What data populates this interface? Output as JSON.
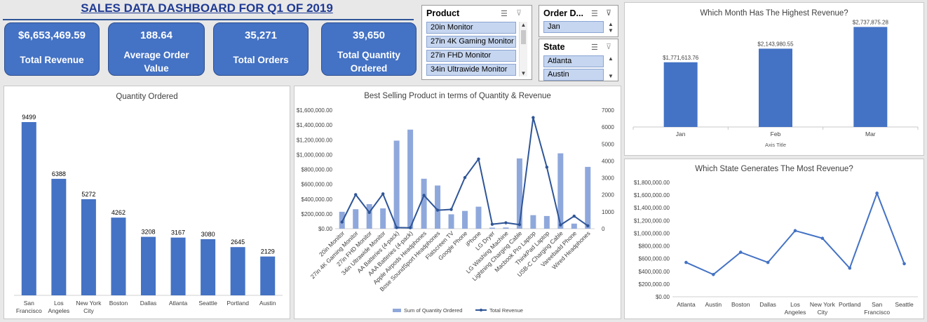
{
  "dashboard": {
    "title": "SALES DATA DASHBOARD FOR Q1 OF 2019"
  },
  "kpis": [
    {
      "value": "$6,653,469.59",
      "label": "Total Revenue"
    },
    {
      "value": "188.64",
      "label": "Average Order Value"
    },
    {
      "value": "35,271",
      "label": "Total Orders"
    },
    {
      "value": "39,650",
      "label": "Total Quantity Ordered"
    }
  ],
  "slicers": {
    "product": {
      "header": "Product",
      "items": [
        "20in Monitor",
        "27in 4K Gaming Monitor",
        "27in FHD Monitor",
        "34in Ultrawide Monitor"
      ]
    },
    "order_date": {
      "header": "Order D...",
      "items": [
        "Jan"
      ]
    },
    "state": {
      "header": "State",
      "items": [
        "Atlanta",
        "Austin"
      ]
    }
  },
  "chart_data": [
    {
      "id": "qty",
      "type": "bar",
      "title": "Quantity Ordered",
      "categories": [
        "San Francisco",
        "Los Angeles",
        "New York City",
        "Boston",
        "Dallas",
        "Atlanta",
        "Seattle",
        "Portland",
        "Austin"
      ],
      "values": [
        9499,
        6388,
        5272,
        4262,
        3208,
        3167,
        3080,
        2645,
        2129
      ],
      "ylim": [
        0,
        10000
      ],
      "color": "#4472c4"
    },
    {
      "id": "product",
      "type": "bar+line",
      "title": "Best Selling Product in terms of Quantity & Revenue",
      "categories": [
        "20in Monitor",
        "27in 4K Gaming Monitor",
        "27in FHD Monitor",
        "34in Ultrawide Monitor",
        "AA Batteries (4-pack)",
        "AAA Batteries (4-pack)",
        "Apple Airpods Headphones",
        "Bose SoundSport Headphones",
        "Flatscreen TV",
        "Google Phone",
        "iPhone",
        "LG Dryer",
        "LG Washing Machine",
        "Lightning Charging Cable",
        "Macbook Pro Laptop",
        "ThinkPad Laptop",
        "USB-C Charging Cable",
        "Vareebadd Phone",
        "Wired Headphones"
      ],
      "series": [
        {
          "name": "Sum of Quantity Ordered",
          "type": "bar",
          "axis": "right",
          "values": [
            1000,
            1150,
            1450,
            1200,
            5200,
            5850,
            2950,
            2550,
            850,
            1050,
            1300,
            60,
            70,
            4150,
            800,
            750,
            4450,
            300,
            3650
          ],
          "color": "#8fa8dc"
        },
        {
          "name": "Total Revenue",
          "type": "line",
          "axis": "left",
          "values": [
            90000,
            460000,
            220000,
            470000,
            15000,
            12000,
            450000,
            250000,
            260000,
            690000,
            940000,
            60000,
            80000,
            55000,
            1500000,
            830000,
            50000,
            170000,
            40000
          ],
          "color": "#2f5597"
        }
      ],
      "ylim_left": [
        0,
        1600000
      ],
      "ylim_right": [
        0,
        7000
      ],
      "left_ticks": [
        "$0.00",
        "$200,000.00",
        "$400,000.00",
        "$600,000.00",
        "$800,000.00",
        "$1,000,000.00",
        "$1,200,000.00",
        "$1,400,000.00",
        "$1,600,000.00"
      ],
      "right_ticks": [
        "0",
        "1000",
        "2000",
        "3000",
        "4000",
        "5000",
        "6000",
        "7000"
      ]
    },
    {
      "id": "month",
      "type": "bar",
      "title": "Which Month Has The Highest Revenue?",
      "categories": [
        "Jan",
        "Feb",
        "Mar"
      ],
      "values": [
        1771613.76,
        2143980.55,
        2737875.28
      ],
      "labels": [
        "$1,771,613.76",
        "$2,143,980.55",
        "$2,737,875.28"
      ],
      "xlabel": "Axis Title",
      "ylim": [
        0,
        2900000
      ],
      "color": "#4472c4"
    },
    {
      "id": "state",
      "type": "line",
      "title": "Which State Generates The Most Revenue?",
      "categories": [
        "Atlanta",
        "Austin",
        "Boston",
        "Dallas",
        "Los Angeles",
        "New York City",
        "Portland",
        "San Francisco",
        "Seattle"
      ],
      "values": [
        540000,
        350000,
        700000,
        540000,
        1040000,
        920000,
        450000,
        1630000,
        520000
      ],
      "ylim": [
        0,
        1800000
      ],
      "y_ticks": [
        "$0.00",
        "$200,000.00",
        "$400,000.00",
        "$600,000.00",
        "$800,000.00",
        "$1,000,000.00",
        "$1,200,000.00",
        "$1,400,000.00",
        "$1,600,000.00",
        "$1,800,000.00"
      ],
      "color": "#4472c4"
    }
  ]
}
